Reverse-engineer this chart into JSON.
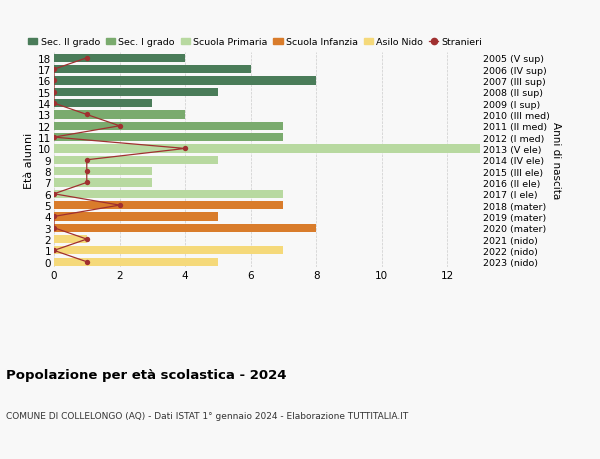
{
  "ages": [
    18,
    17,
    16,
    15,
    14,
    13,
    12,
    11,
    10,
    9,
    8,
    7,
    6,
    5,
    4,
    3,
    2,
    1,
    0
  ],
  "right_labels": [
    "2005 (V sup)",
    "2006 (IV sup)",
    "2007 (III sup)",
    "2008 (II sup)",
    "2009 (I sup)",
    "2010 (III med)",
    "2011 (II med)",
    "2012 (I med)",
    "2013 (V ele)",
    "2014 (IV ele)",
    "2015 (III ele)",
    "2016 (II ele)",
    "2017 (I ele)",
    "2018 (mater)",
    "2019 (mater)",
    "2020 (mater)",
    "2021 (nido)",
    "2022 (nido)",
    "2023 (nido)"
  ],
  "bar_values": [
    4,
    6,
    8,
    5,
    3,
    4,
    7,
    7,
    13,
    5,
    3,
    3,
    7,
    7,
    5,
    8,
    1,
    7,
    5
  ],
  "bar_colors": [
    "#4a7c59",
    "#4a7c59",
    "#4a7c59",
    "#4a7c59",
    "#4a7c59",
    "#7aab6e",
    "#7aab6e",
    "#7aab6e",
    "#b8d9a0",
    "#b8d9a0",
    "#b8d9a0",
    "#b8d9a0",
    "#b8d9a0",
    "#d97c2b",
    "#d97c2b",
    "#d97c2b",
    "#f5d97a",
    "#f5d97a",
    "#f5d97a"
  ],
  "stranieri_values": [
    1,
    0,
    0,
    0,
    0,
    1,
    2,
    0,
    4,
    1,
    1,
    1,
    0,
    2,
    0,
    0,
    1,
    0,
    1
  ],
  "stranieri_color": "#a03030",
  "legend_labels": [
    "Sec. II grado",
    "Sec. I grado",
    "Scuola Primaria",
    "Scuola Infanzia",
    "Asilo Nido",
    "Stranieri"
  ],
  "legend_colors": [
    "#4a7c59",
    "#7aab6e",
    "#b8d9a0",
    "#d97c2b",
    "#f5d97a",
    "#a03030"
  ],
  "title": "Popolazione per età scolastica - 2024",
  "subtitle": "COMUNE DI COLLELONGO (AQ) - Dati ISTAT 1° gennaio 2024 - Elaborazione TUTTITALIA.IT",
  "ylabel_left": "Età alunni",
  "ylabel_right": "Anni di nascita",
  "xlim": [
    0,
    13
  ],
  "xticks": [
    0,
    2,
    4,
    6,
    8,
    10,
    12
  ],
  "background_color": "#f8f8f8",
  "grid_color": "#cccccc"
}
